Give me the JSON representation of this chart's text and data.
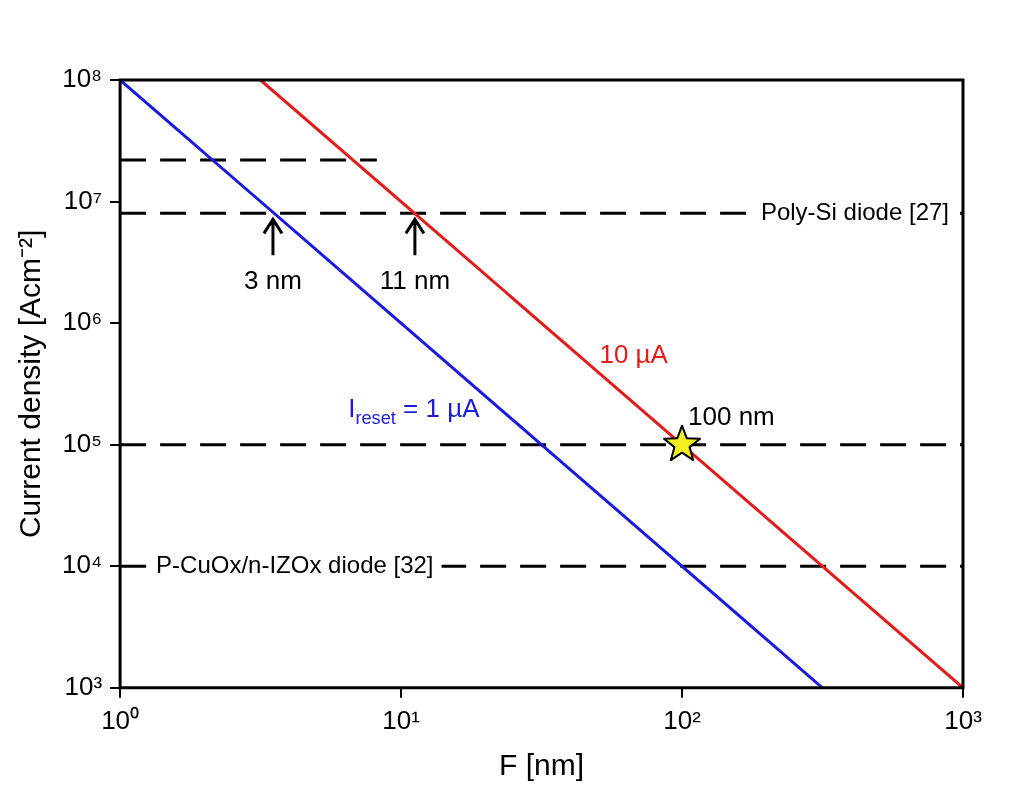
{
  "chart_data": {
    "type": "line",
    "xlabel": "F [nm]",
    "ylabel": "Current density [Acm⁻²]",
    "log": "xy",
    "grid": false,
    "legend": false,
    "line_style": "solid",
    "marker": "none",
    "xlim": [
      1,
      1000
    ],
    "xticks": [
      {
        "value": 1,
        "label": "10⁰"
      },
      {
        "value": 10,
        "label": "10¹"
      },
      {
        "value": 100,
        "label": "10²"
      },
      {
        "value": 1000,
        "label": "10³"
      }
    ],
    "ylim": [
      1000,
      100000000
    ],
    "yticks": [
      {
        "value": 1000,
        "label": "10³"
      },
      {
        "value": 10000,
        "label": "10⁴"
      },
      {
        "value": 100000,
        "label": "10⁵"
      },
      {
        "value": 1000000,
        "label": "10⁶"
      },
      {
        "value": 10000000,
        "label": "10⁷"
      },
      {
        "value": 100000000,
        "label": "10⁸"
      }
    ],
    "series": [
      {
        "name": "I$_{reset}$ = 1 µA",
        "color": "#1a1adc",
        "x": [
          1,
          316
        ],
        "values": [
          100000000,
          1000
        ]
      },
      {
        "name": "10 µA",
        "color": "#e21b1b",
        "x": [
          3.16,
          1000
        ],
        "values": [
          100000000,
          1000
        ]
      },
      {
        "color": "#000000",
        "x": [
          1,
          8.2
        ],
        "values": [
          22000000,
          22000000
        ],
        "line_style": "dashed"
      },
      {
        "type": "scatter",
        "marker": "star",
        "color": "#f5f020",
        "x": [
          100
        ],
        "values": [
          100000
        ]
      }
    ],
    "ref_lines": [
      {
        "axis": "y",
        "value": 8000000,
        "label": "Poly-Si diode [27]",
        "line_style": "dashed",
        "color": "#000000"
      },
      {
        "axis": "y",
        "value": 100000,
        "line_style": "dashed",
        "color": "#000000"
      },
      {
        "axis": "y",
        "value": 10000,
        "label": "P-CuOx/n-IZOx diode [32]",
        "line_style": "dashed",
        "color": "#000000"
      }
    ],
    "annotations": [
      {
        "text": "3 nm",
        "x": 3.5,
        "y": 8000000
      },
      {
        "text": "11 nm",
        "x": 11.2,
        "y": 8000000
      },
      {
        "text": "100 nm",
        "x": 100,
        "y": 100000
      }
    ]
  }
}
